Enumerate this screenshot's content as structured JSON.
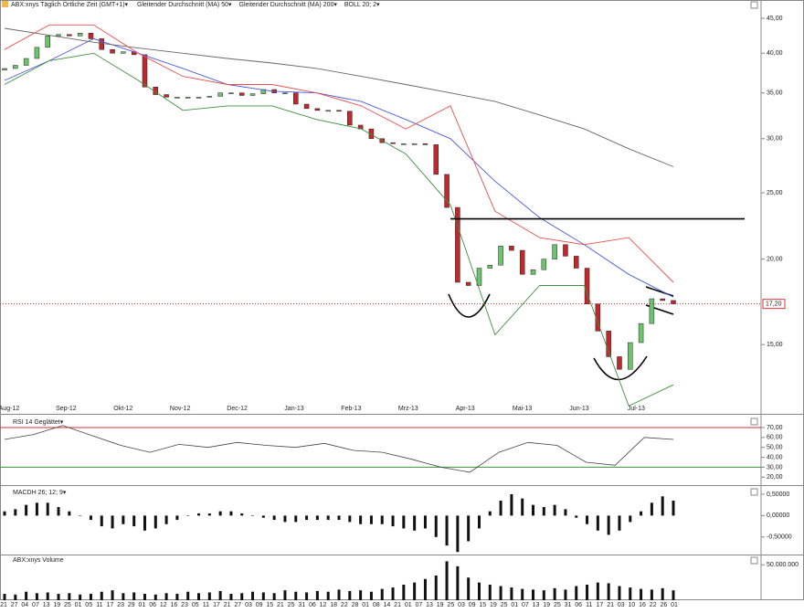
{
  "chart_data": [
    {
      "type": "candlestick",
      "log_scale": true,
      "title": "ABX:xnys Täglich Örtliche Zeit (GMT+1)▾",
      "ylim": [
        11.88,
        47.85
      ],
      "yticks": [
        {
          "value": 45,
          "label": "45,00"
        },
        {
          "value": 40,
          "label": "40,00"
        },
        {
          "value": 35,
          "label": "35,00"
        },
        {
          "value": 30,
          "label": "30,00"
        },
        {
          "value": 25,
          "label": "25,00"
        },
        {
          "value": 20,
          "label": "20,00"
        },
        {
          "value": 15,
          "label": "15,00"
        }
      ],
      "up_color": "#6cc46c",
      "down_color": "#c0282b",
      "open": [
        37.8,
        38,
        38.4,
        39.3,
        40.8,
        42.4,
        42.6,
        42.4,
        42.8,
        42,
        40.5,
        40,
        40.2,
        39.8,
        35.7,
        34.8,
        34.5,
        34.5,
        34.5,
        34.5,
        34.6,
        35,
        35,
        34.7,
        34.9,
        35.4,
        35,
        35,
        33.7,
        33.2,
        33,
        33,
        32.9,
        31.4,
        31,
        30,
        29.6,
        29.5,
        29.5,
        29.5,
        29.4,
        26.6,
        23.8,
        18.5,
        18.3,
        19.4,
        19.6,
        20.9,
        20.6,
        19,
        19.3,
        20,
        21,
        20.2,
        19.4,
        17.2,
        15.7,
        14.4,
        13.8,
        15.1,
        16.1,
        17.5,
        17.4
      ],
      "close": [
        38,
        38.4,
        39.3,
        40.8,
        42.4,
        42.6,
        42.4,
        42.8,
        42,
        40.5,
        40,
        40.2,
        39.8,
        35.7,
        34.8,
        34.5,
        34.5,
        34.5,
        34.5,
        34.6,
        35,
        35,
        34.7,
        34.9,
        35.4,
        35,
        35,
        33.7,
        33.2,
        33,
        33,
        32.9,
        31.4,
        31,
        30,
        29.6,
        29.5,
        29.5,
        29.5,
        29.4,
        26.6,
        23.8,
        18.5,
        18.3,
        19.4,
        19.6,
        20.9,
        20.6,
        19,
        19.3,
        20,
        21,
        20.2,
        19.4,
        17.2,
        15.7,
        14.4,
        13.8,
        15.1,
        16.1,
        17.5,
        17.4,
        17.2
      ],
      "series": [
        {
          "name": "Gleitender Durchschnitt (MA) 50▾",
          "color": "#4a5be0",
          "values": [
            36.5,
            39,
            42,
            40,
            38,
            36,
            35.2,
            35,
            34,
            32,
            30,
            26,
            23,
            21,
            19,
            17.6
          ]
        },
        {
          "name": "Gleitender Durchschnitt (MA) 200▾",
          "color": "#666666",
          "values": [
            43.5,
            42.5,
            41.5,
            40.7,
            40,
            39.3,
            38.7,
            38,
            37,
            36,
            35,
            34,
            32.5,
            31,
            29,
            27.3
          ]
        },
        {
          "name": "BOLL 20; 2▾",
          "color": "#e85050",
          "values": [
            40.5,
            44,
            44,
            40,
            37,
            36,
            36,
            35,
            33.5,
            31,
            33.5,
            23.5,
            21.5,
            21,
            21.5,
            18.5
          ]
        },
        {
          "color": "#3f8f3f",
          "values": [
            36,
            39,
            40,
            36.5,
            33,
            33.5,
            33.5,
            32,
            31,
            28.5,
            24,
            15.5,
            18.3,
            18.3,
            12.2,
            13.1
          ]
        }
      ],
      "hline": 22.9,
      "last_price": {
        "value": 17.2,
        "label": "17,20"
      },
      "month_labels": [
        "Aug-12",
        "Sep-12",
        "Okt-12",
        "Nov-12",
        "Dec-12",
        "Jan-13",
        "Feb-13",
        "Mrz-13",
        "Apr-13",
        "Mai-13",
        "Jun-13",
        "Jul-13"
      ],
      "day_labels": [
        "21",
        "27",
        "04",
        "07",
        "13",
        "19",
        "25",
        "01",
        "05",
        "11",
        "17",
        "23",
        "29",
        "01",
        "06",
        "12",
        "16",
        "23",
        "05",
        "11",
        "17",
        "21",
        "27",
        "03",
        "09",
        "15",
        "21",
        "25",
        "31",
        "06",
        "12",
        "18",
        "22",
        "28",
        "01",
        "08",
        "14",
        "21",
        "01",
        "07",
        "13",
        "19",
        "25",
        "03",
        "09",
        "15",
        "19",
        "25",
        "01",
        "07",
        "13",
        "19",
        "25",
        "31",
        "06",
        "11",
        "17",
        "21",
        "03",
        "10",
        "16",
        "22",
        "26",
        "01"
      ]
    },
    {
      "type": "line",
      "title": "RSI 14 Geglättet▾",
      "ylim": [
        12,
        81
      ],
      "yticks": [
        {
          "value": 70,
          "label": "70,00"
        },
        {
          "value": 60,
          "label": "60,00"
        },
        {
          "value": 50,
          "label": "50,00"
        },
        {
          "value": 40,
          "label": "40,00"
        },
        {
          "value": 30,
          "label": "30,00"
        },
        {
          "value": 20,
          "label": "20,00"
        }
      ],
      "levels": [
        70,
        30
      ],
      "level_colors": [
        "#d03030",
        "#3f8f3f"
      ],
      "color": "#444444",
      "values": [
        58,
        63,
        72,
        62,
        52,
        45,
        53,
        50,
        55,
        52,
        50,
        54,
        47,
        45,
        38,
        30,
        25,
        45,
        55,
        52,
        35,
        32,
        60,
        58
      ]
    },
    {
      "type": "bar",
      "title": "MACDH 26; 12; 9▾",
      "ylim": [
        -0.91,
        0.67
      ],
      "yticks": [
        {
          "value": 0.5,
          "label": "0,50000"
        },
        {
          "value": 0,
          "label": "0,00000"
        },
        {
          "value": -0.5,
          "label": "-0,50000"
        }
      ],
      "color": "#111111",
      "values": [
        0.1,
        0.15,
        0.25,
        0.3,
        0.3,
        0.2,
        0.1,
        0,
        -0.1,
        -0.25,
        -0.3,
        -0.2,
        -0.25,
        -0.35,
        -0.3,
        -0.2,
        -0.1,
        0,
        0.05,
        0.05,
        0.1,
        0.1,
        0.05,
        0,
        -0.05,
        -0.1,
        -0.15,
        -0.15,
        -0.1,
        -0.1,
        -0.1,
        -0.1,
        -0.15,
        -0.2,
        -0.2,
        -0.2,
        -0.25,
        -0.3,
        -0.35,
        -0.3,
        -0.5,
        -0.7,
        -0.85,
        -0.6,
        -0.3,
        0.1,
        0.35,
        0.5,
        0.4,
        0.25,
        0.2,
        0.25,
        0.15,
        -0.05,
        -0.2,
        -0.35,
        -0.45,
        -0.35,
        -0.15,
        0.1,
        0.3,
        0.45,
        0.35
      ]
    },
    {
      "type": "bar",
      "title": "ABX:xnys Volume",
      "ylim": [
        0,
        62000000
      ],
      "yticks": [
        {
          "value": 50000000,
          "label": "50.000.000"
        }
      ],
      "color": "#111111",
      "values": [
        9000000,
        8000000,
        12000000,
        10000000,
        11000000,
        9000000,
        10000000,
        8000000,
        9000000,
        12000000,
        14000000,
        10000000,
        11000000,
        9000000,
        8000000,
        10000000,
        9000000,
        12000000,
        10000000,
        11000000,
        13000000,
        9000000,
        10000000,
        12000000,
        11000000,
        10000000,
        14000000,
        12000000,
        11000000,
        13000000,
        12000000,
        15000000,
        13000000,
        14000000,
        12000000,
        16000000,
        18000000,
        22000000,
        25000000,
        30000000,
        35000000,
        55000000,
        48000000,
        32000000,
        25000000,
        22000000,
        20000000,
        18000000,
        16000000,
        15000000,
        14000000,
        17000000,
        15000000,
        20000000,
        22000000,
        25000000,
        24000000,
        20000000,
        18000000,
        16000000,
        15000000,
        17000000,
        14000000
      ]
    }
  ]
}
